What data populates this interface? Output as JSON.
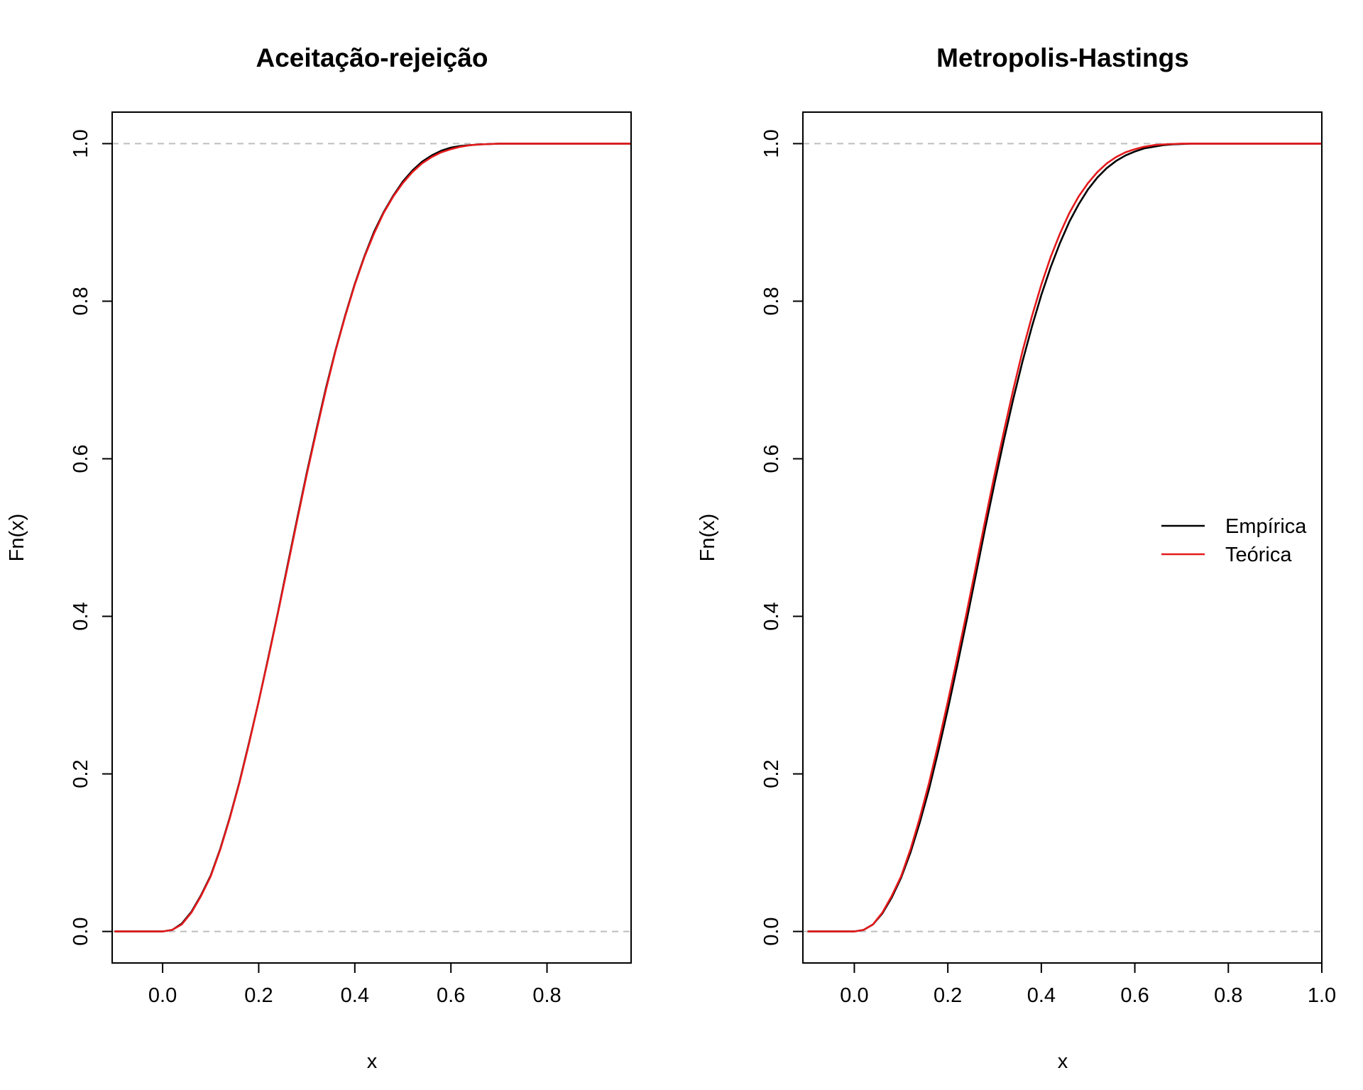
{
  "chart_data": [
    {
      "type": "line",
      "title": "Aceitação-rejeição",
      "xlabel": "x",
      "ylabel": "Fn(x)",
      "xlim": [
        -0.105,
        0.975
      ],
      "ylim": [
        -0.04,
        1.04
      ],
      "x_ticks": [
        "0.0",
        "0.2",
        "0.4",
        "0.6",
        "0.8"
      ],
      "y_ticks": [
        "0.0",
        "0.2",
        "0.4",
        "0.6",
        "0.8",
        "1.0"
      ],
      "reference_lines": [
        0,
        1
      ],
      "x": [
        -0.1,
        0.0,
        0.02,
        0.04,
        0.06,
        0.08,
        0.1,
        0.12,
        0.14,
        0.16,
        0.18,
        0.2,
        0.22,
        0.24,
        0.26,
        0.28,
        0.3,
        0.32,
        0.34,
        0.36,
        0.38,
        0.4,
        0.42,
        0.44,
        0.46,
        0.48,
        0.5,
        0.52,
        0.54,
        0.56,
        0.58,
        0.6,
        0.62,
        0.64,
        0.66,
        0.68,
        0.7,
        0.72,
        0.74,
        0.76,
        0.78,
        0.8,
        0.85,
        0.9,
        0.975
      ],
      "series": [
        {
          "name": "Empírica",
          "color": "#000000",
          "values": [
            0,
            0,
            0.002,
            0.01,
            0.025,
            0.046,
            0.071,
            0.105,
            0.145,
            0.19,
            0.24,
            0.292,
            0.348,
            0.405,
            0.465,
            0.524,
            0.582,
            0.637,
            0.69,
            0.738,
            0.782,
            0.822,
            0.857,
            0.888,
            0.913,
            0.934,
            0.952,
            0.966,
            0.977,
            0.985,
            0.991,
            0.995,
            0.997,
            0.998,
            0.999,
            0.9995,
            1,
            1,
            1,
            1,
            1,
            1,
            1,
            1,
            1
          ]
        },
        {
          "name": "Teórica",
          "color": "#e41a1c",
          "values": [
            0,
            0,
            0.002,
            0.009,
            0.024,
            0.045,
            0.07,
            0.104,
            0.144,
            0.189,
            0.239,
            0.292,
            0.347,
            0.404,
            0.463,
            0.522,
            0.58,
            0.635,
            0.688,
            0.737,
            0.781,
            0.821,
            0.856,
            0.886,
            0.912,
            0.933,
            0.95,
            0.964,
            0.975,
            0.983,
            0.989,
            0.993,
            0.996,
            0.998,
            0.999,
            0.9995,
            1,
            1,
            1,
            1,
            1,
            1,
            1,
            1,
            1
          ]
        }
      ]
    },
    {
      "type": "line",
      "title": "Metropolis-Hastings",
      "xlabel": "x",
      "ylabel": "Fn(x)",
      "xlim": [
        -0.11,
        1.0
      ],
      "ylim": [
        -0.04,
        1.04
      ],
      "x_ticks": [
        "0.0",
        "0.2",
        "0.4",
        "0.6",
        "0.8",
        "1.0"
      ],
      "y_ticks": [
        "0.0",
        "0.2",
        "0.4",
        "0.6",
        "0.8",
        "1.0"
      ],
      "reference_lines": [
        0,
        1
      ],
      "legend": {
        "position": "right",
        "entries": [
          "Empírica",
          "Teórica"
        ]
      },
      "x": [
        -0.1,
        0.0,
        0.02,
        0.04,
        0.06,
        0.08,
        0.1,
        0.12,
        0.14,
        0.16,
        0.18,
        0.2,
        0.22,
        0.24,
        0.26,
        0.28,
        0.3,
        0.32,
        0.34,
        0.36,
        0.38,
        0.4,
        0.42,
        0.44,
        0.46,
        0.48,
        0.5,
        0.52,
        0.54,
        0.56,
        0.58,
        0.6,
        0.62,
        0.64,
        0.66,
        0.68,
        0.7,
        0.72,
        0.74,
        0.76,
        0.78,
        0.8,
        0.85,
        0.9,
        1.0
      ],
      "series": [
        {
          "name": "Empírica",
          "color": "#000000",
          "values": [
            0,
            0,
            0.002,
            0.009,
            0.023,
            0.043,
            0.068,
            0.1,
            0.138,
            0.181,
            0.23,
            0.282,
            0.337,
            0.394,
            0.453,
            0.512,
            0.569,
            0.624,
            0.676,
            0.724,
            0.768,
            0.808,
            0.843,
            0.874,
            0.901,
            0.923,
            0.942,
            0.957,
            0.969,
            0.978,
            0.985,
            0.99,
            0.994,
            0.996,
            0.998,
            0.999,
            0.9995,
            1,
            1,
            1,
            1,
            1,
            1,
            1,
            1
          ]
        },
        {
          "name": "Teórica",
          "color": "#e41a1c",
          "values": [
            0,
            0,
            0.002,
            0.009,
            0.024,
            0.045,
            0.07,
            0.104,
            0.144,
            0.189,
            0.239,
            0.292,
            0.347,
            0.404,
            0.463,
            0.522,
            0.58,
            0.635,
            0.688,
            0.737,
            0.781,
            0.821,
            0.856,
            0.886,
            0.912,
            0.933,
            0.95,
            0.964,
            0.975,
            0.983,
            0.989,
            0.993,
            0.996,
            0.998,
            0.999,
            0.9995,
            1,
            1,
            1,
            1,
            1,
            1,
            1,
            1,
            1
          ]
        }
      ]
    }
  ]
}
